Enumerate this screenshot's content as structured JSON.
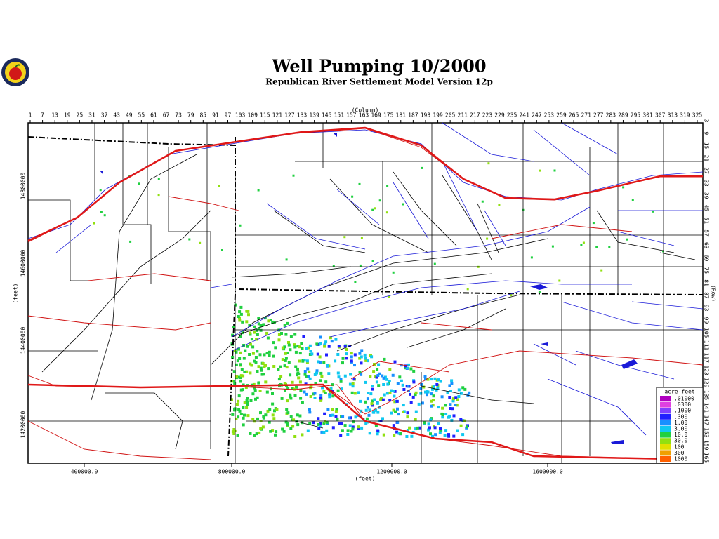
{
  "header": {
    "title": "Well Pumping 10/2000",
    "subtitle": "Republican River Settlement Model Version 12p"
  },
  "axes": {
    "column_label": "(Column)",
    "row_label": "(Row)",
    "x_label": "(feet)",
    "y_label": "(feet)",
    "columns": [
      "1",
      "7",
      "13",
      "19",
      "25",
      "31",
      "37",
      "43",
      "49",
      "55",
      "61",
      "67",
      "73",
      "79",
      "85",
      "91",
      "97",
      "103",
      "109",
      "115",
      "121",
      "127",
      "133",
      "139",
      "145",
      "151",
      "157",
      "163",
      "169",
      "175",
      "181",
      "187",
      "193",
      "199",
      "205",
      "211",
      "217",
      "223",
      "229",
      "235",
      "241",
      "247",
      "253",
      "259",
      "265",
      "271",
      "277",
      "283",
      "289",
      "295",
      "301",
      "307",
      "313",
      "319",
      "325"
    ],
    "rows": [
      "3",
      "9",
      "15",
      "21",
      "27",
      "33",
      "39",
      "45",
      "51",
      "57",
      "63",
      "69",
      "75",
      "81",
      "87",
      "93",
      "99",
      "105",
      "111",
      "117",
      "123",
      "129",
      "135",
      "141",
      "147",
      "153",
      "159",
      "165"
    ],
    "x_ticks": [
      "400000.0",
      "800000.0",
      "1200000.0",
      "1600000.0"
    ],
    "y_ticks": [
      "14800000",
      "14600000",
      "14400000",
      "14200000"
    ]
  },
  "legend": {
    "title": "acre-feet",
    "labels": [
      ".01000",
      ".0300",
      ".1000",
      ".300",
      "1.00",
      "3.00",
      "10.0",
      "30.0",
      "100",
      "300",
      "1000"
    ]
  }
}
